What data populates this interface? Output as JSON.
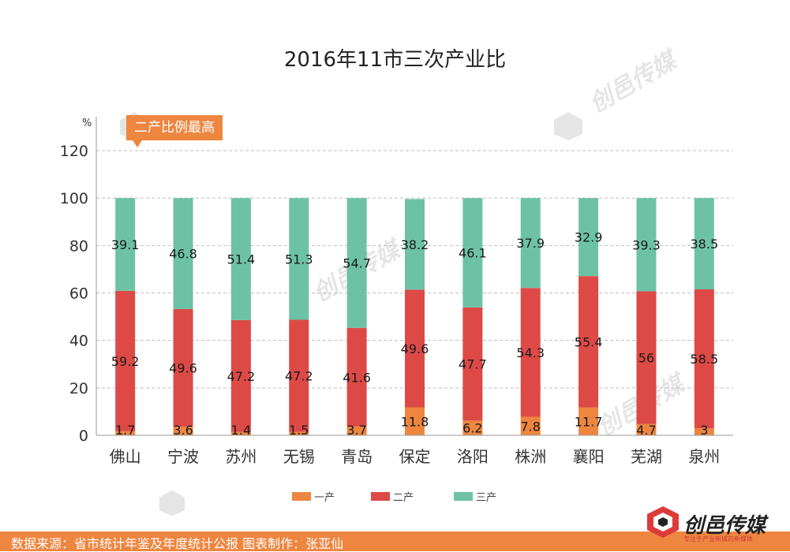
{
  "title": "2016年11市三次产业比",
  "unit_label": "%",
  "callout": "二产比例最高",
  "footer": "数据来源：省市统计年鉴及年度统计公报  图表制作：张亚仙",
  "brand": {
    "name": "创邑传媒",
    "tagline": "专注于产业新城的新媒体",
    "watermark": "创邑传媒"
  },
  "colors": {
    "primary": "#ee8640",
    "secondary": "#dd4a46",
    "tertiary": "#6dc2a5",
    "grid": "#bfbfbf"
  },
  "chart_data": {
    "type": "bar",
    "stacked": true,
    "title": "2016年11市三次产业比",
    "xlabel": "",
    "ylabel": "%",
    "ylim": [
      0,
      120
    ],
    "yticks": [
      0,
      20,
      40,
      60,
      80,
      100,
      120
    ],
    "grid": true,
    "legend_position": "bottom",
    "categories": [
      "佛山",
      "宁波",
      "苏州",
      "无锡",
      "青岛",
      "保定",
      "洛阳",
      "株洲",
      "襄阳",
      "芜湖",
      "泉州"
    ],
    "series": [
      {
        "name": "一产",
        "color": "#ee8640",
        "values": [
          1.7,
          3.6,
          1.4,
          1.5,
          3.7,
          11.8,
          6.2,
          7.8,
          11.7,
          4.7,
          3
        ]
      },
      {
        "name": "二产",
        "color": "#dd4a46",
        "values": [
          59.2,
          49.6,
          47.2,
          47.2,
          41.6,
          49.6,
          47.7,
          54.3,
          55.4,
          56,
          58.5
        ]
      },
      {
        "name": "三产",
        "color": "#6dc2a5",
        "values": [
          39.1,
          46.8,
          51.4,
          51.3,
          54.7,
          38.2,
          46.1,
          37.9,
          32.9,
          39.3,
          38.5
        ]
      }
    ]
  }
}
